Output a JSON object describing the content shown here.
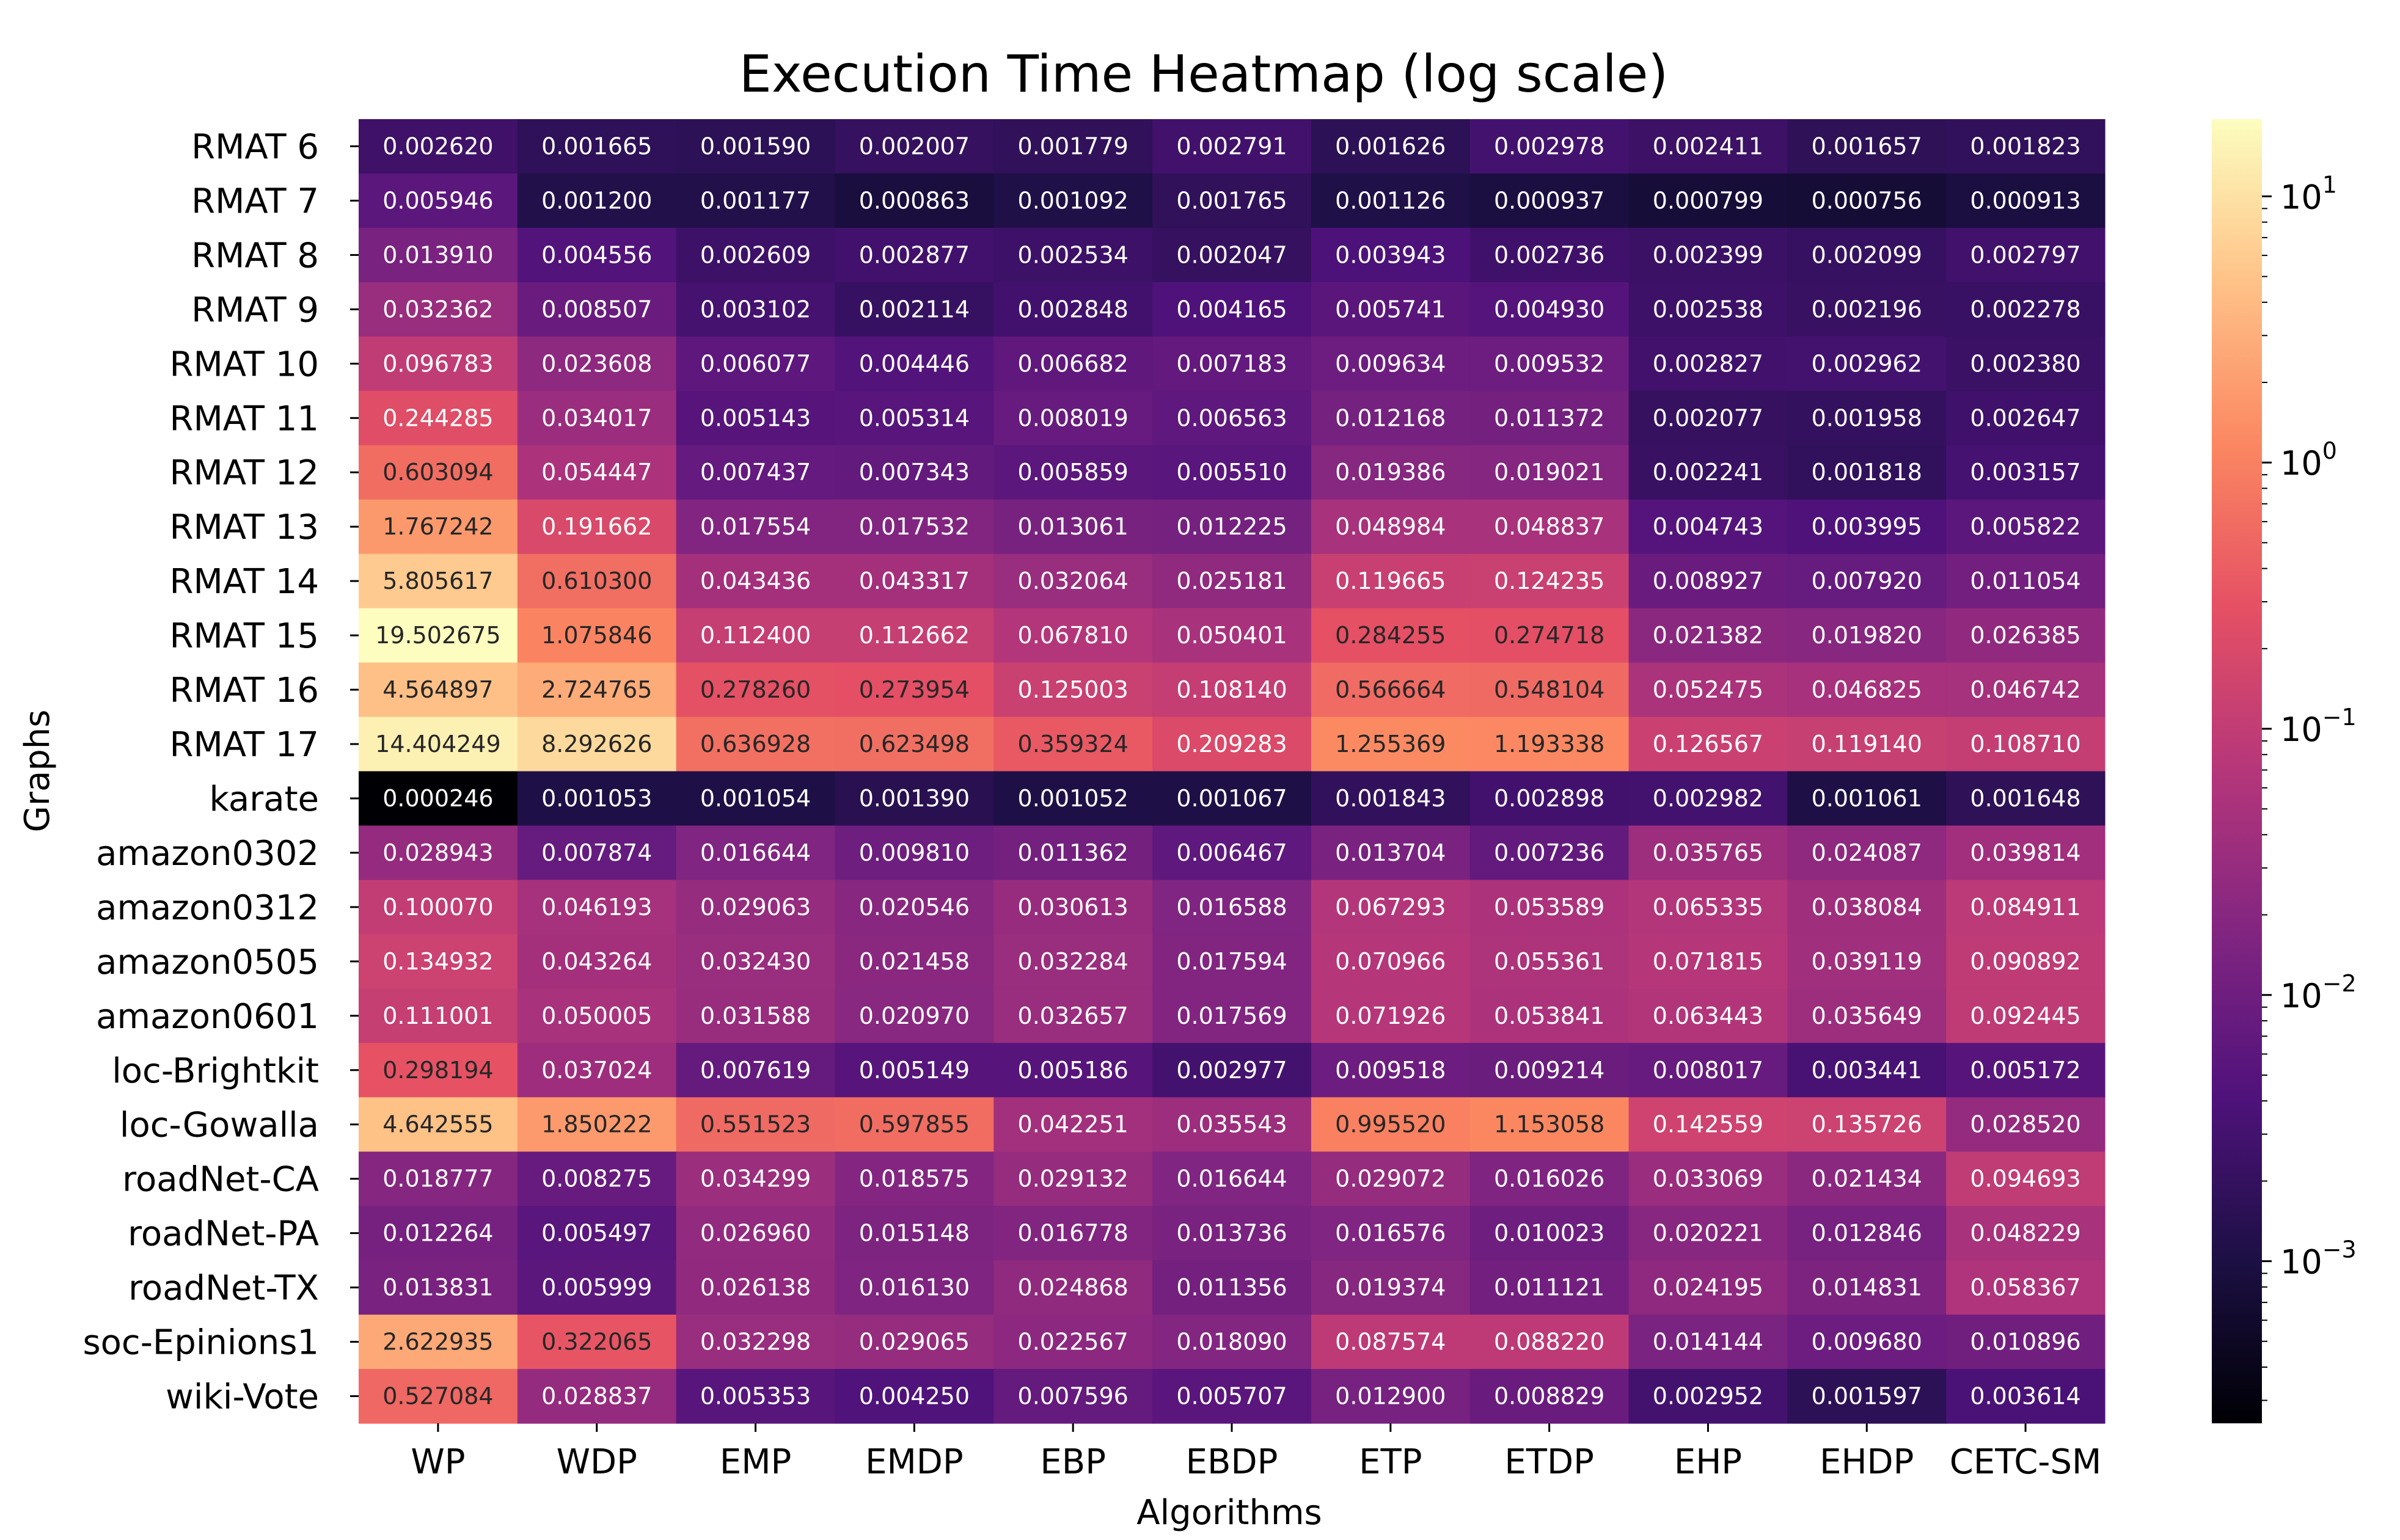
{
  "chart_data": {
    "type": "heatmap",
    "title": "Execution Time Heatmap (log scale)",
    "xlabel": "Algorithms",
    "ylabel": "Graphs",
    "columns": [
      "WP",
      "WDP",
      "EMP",
      "EMDP",
      "EBP",
      "EBDP",
      "ETP",
      "ETDP",
      "EHP",
      "EHDP",
      "CETC-SM"
    ],
    "rows": [
      "RMAT 6",
      "RMAT 7",
      "RMAT 8",
      "RMAT 9",
      "RMAT 10",
      "RMAT 11",
      "RMAT 12",
      "RMAT 13",
      "RMAT 14",
      "RMAT 15",
      "RMAT 16",
      "RMAT 17",
      "karate",
      "amazon0302",
      "amazon0312",
      "amazon0505",
      "amazon0601",
      "loc-Brightkit",
      "loc-Gowalla",
      "roadNet-CA",
      "roadNet-PA",
      "roadNet-TX",
      "soc-Epinions1",
      "wiki-Vote"
    ],
    "cell_labels": [
      [
        "0.002620",
        "0.001665",
        "0.001590",
        "0.002007",
        "0.001779",
        "0.002791",
        "0.001626",
        "0.002978",
        "0.002411",
        "0.001657",
        "0.001823"
      ],
      [
        "0.005946",
        "0.001200",
        "0.001177",
        "0.000863",
        "0.001092",
        "0.001765",
        "0.001126",
        "0.000937",
        "0.000799",
        "0.000756",
        "0.000913"
      ],
      [
        "0.013910",
        "0.004556",
        "0.002609",
        "0.002877",
        "0.002534",
        "0.002047",
        "0.003943",
        "0.002736",
        "0.002399",
        "0.002099",
        "0.002797"
      ],
      [
        "0.032362",
        "0.008507",
        "0.003102",
        "0.002114",
        "0.002848",
        "0.004165",
        "0.005741",
        "0.004930",
        "0.002538",
        "0.002196",
        "0.002278"
      ],
      [
        "0.096783",
        "0.023608",
        "0.006077",
        "0.004446",
        "0.006682",
        "0.007183",
        "0.009634",
        "0.009532",
        "0.002827",
        "0.002962",
        "0.002380"
      ],
      [
        "0.244285",
        "0.034017",
        "0.005143",
        "0.005314",
        "0.008019",
        "0.006563",
        "0.012168",
        "0.011372",
        "0.002077",
        "0.001958",
        "0.002647"
      ],
      [
        "0.603094",
        "0.054447",
        "0.007437",
        "0.007343",
        "0.005859",
        "0.005510",
        "0.019386",
        "0.019021",
        "0.002241",
        "0.001818",
        "0.003157"
      ],
      [
        "1.767242",
        "0.191662",
        "0.017554",
        "0.017532",
        "0.013061",
        "0.012225",
        "0.048984",
        "0.048837",
        "0.004743",
        "0.003995",
        "0.005822"
      ],
      [
        "5.805617",
        "0.610300",
        "0.043436",
        "0.043317",
        "0.032064",
        "0.025181",
        "0.119665",
        "0.124235",
        "0.008927",
        "0.007920",
        "0.011054"
      ],
      [
        "19.502675",
        "1.075846",
        "0.112400",
        "0.112662",
        "0.067810",
        "0.050401",
        "0.284255",
        "0.274718",
        "0.021382",
        "0.019820",
        "0.026385"
      ],
      [
        "4.564897",
        "2.724765",
        "0.278260",
        "0.273954",
        "0.125003",
        "0.108140",
        "0.566664",
        "0.548104",
        "0.052475",
        "0.046825",
        "0.046742"
      ],
      [
        "14.404249",
        "8.292626",
        "0.636928",
        "0.623498",
        "0.359324",
        "0.209283",
        "1.255369",
        "1.193338",
        "0.126567",
        "0.119140",
        "0.108710"
      ],
      [
        "0.000246",
        "0.001053",
        "0.001054",
        "0.001390",
        "0.001052",
        "0.001067",
        "0.001843",
        "0.002898",
        "0.002982",
        "0.001061",
        "0.001648"
      ],
      [
        "0.028943",
        "0.007874",
        "0.016644",
        "0.009810",
        "0.011362",
        "0.006467",
        "0.013704",
        "0.007236",
        "0.035765",
        "0.024087",
        "0.039814"
      ],
      [
        "0.100070",
        "0.046193",
        "0.029063",
        "0.020546",
        "0.030613",
        "0.016588",
        "0.067293",
        "0.053589",
        "0.065335",
        "0.038084",
        "0.084911"
      ],
      [
        "0.134932",
        "0.043264",
        "0.032430",
        "0.021458",
        "0.032284",
        "0.017594",
        "0.070966",
        "0.055361",
        "0.071815",
        "0.039119",
        "0.090892"
      ],
      [
        "0.111001",
        "0.050005",
        "0.031588",
        "0.020970",
        "0.032657",
        "0.017569",
        "0.071926",
        "0.053841",
        "0.063443",
        "0.035649",
        "0.092445"
      ],
      [
        "0.298194",
        "0.037024",
        "0.007619",
        "0.005149",
        "0.005186",
        "0.002977",
        "0.009518",
        "0.009214",
        "0.008017",
        "0.003441",
        "0.005172"
      ],
      [
        "4.642555",
        "1.850222",
        "0.551523",
        "0.597855",
        "0.042251",
        "0.035543",
        "0.995520",
        "1.153058",
        "0.142559",
        "0.135726",
        "0.028520"
      ],
      [
        "0.018777",
        "0.008275",
        "0.034299",
        "0.018575",
        "0.029132",
        "0.016644",
        "0.029072",
        "0.016026",
        "0.033069",
        "0.021434",
        "0.094693"
      ],
      [
        "0.012264",
        "0.005497",
        "0.026960",
        "0.015148",
        "0.016778",
        "0.013736",
        "0.016576",
        "0.010023",
        "0.020221",
        "0.012846",
        "0.048229"
      ],
      [
        "0.013831",
        "0.005999",
        "0.026138",
        "0.016130",
        "0.024868",
        "0.011356",
        "0.019374",
        "0.011121",
        "0.024195",
        "0.014831",
        "0.058367"
      ],
      [
        "2.622935",
        "0.322065",
        "0.032298",
        "0.029065",
        "0.022567",
        "0.018090",
        "0.087574",
        "0.088220",
        "0.014144",
        "0.009680",
        "0.010896"
      ],
      [
        "0.527084",
        "0.028837",
        "0.005353",
        "0.004250",
        "0.007596",
        "0.005707",
        "0.012900",
        "0.008829",
        "0.002952",
        "0.001597",
        "0.003614"
      ]
    ],
    "colorscale": {
      "name": "magma",
      "scale": "log",
      "min": 0.000246,
      "max": 19.502675,
      "ticks": [
        {
          "value": 10,
          "base": "10",
          "exp": "1"
        },
        {
          "value": 1,
          "base": "10",
          "exp": "0"
        },
        {
          "value": 0.1,
          "base": "10",
          "exp": "−1"
        },
        {
          "value": 0.01,
          "base": "10",
          "exp": "−2"
        },
        {
          "value": 0.001,
          "base": "10",
          "exp": "−3"
        }
      ]
    }
  }
}
